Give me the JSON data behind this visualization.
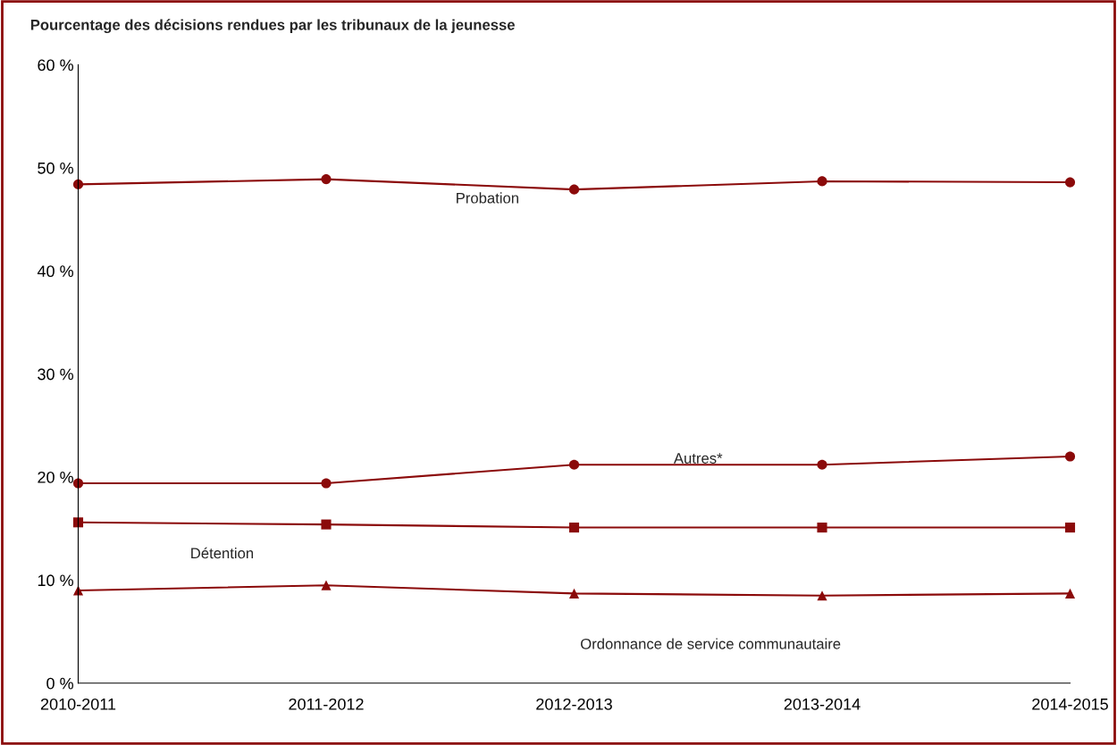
{
  "chart_data": {
    "type": "line",
    "title": "Pourcentage des décisions rendues par les tribunaux de la jeunesse",
    "categories": [
      "2010-2011",
      "2011-2012",
      "2012-2013",
      "2013-2014",
      "2014-2015"
    ],
    "series": [
      {
        "name": "Probation",
        "color": "#8b0a0a",
        "marker": "circle",
        "values": [
          48.4,
          48.9,
          47.9,
          48.7,
          48.6
        ]
      },
      {
        "name": "Autres*",
        "color": "#8b0a0a",
        "marker": "circle",
        "values": [
          19.4,
          19.4,
          21.2,
          21.2,
          22.0
        ]
      },
      {
        "name": "Détention",
        "color": "#8b0a0a",
        "marker": "square",
        "values": [
          15.6,
          15.4,
          15.1,
          15.1,
          15.1
        ]
      },
      {
        "name": "Ordonnance de service communautaire",
        "color": "#8b0a0a",
        "marker": "triangle",
        "values": [
          9.0,
          9.5,
          8.7,
          8.5,
          8.7
        ]
      }
    ],
    "ylim": [
      0,
      60
    ],
    "yticks": [
      {
        "value": 0,
        "label": "0 %"
      },
      {
        "value": 10,
        "label": "10 %"
      },
      {
        "value": 20,
        "label": "20 %"
      },
      {
        "value": 30,
        "label": "30 %"
      },
      {
        "value": 40,
        "label": "40 %"
      },
      {
        "value": 50,
        "label": "50 %"
      },
      {
        "value": 60,
        "label": "60 %"
      }
    ],
    "grid": false,
    "legend": false
  }
}
